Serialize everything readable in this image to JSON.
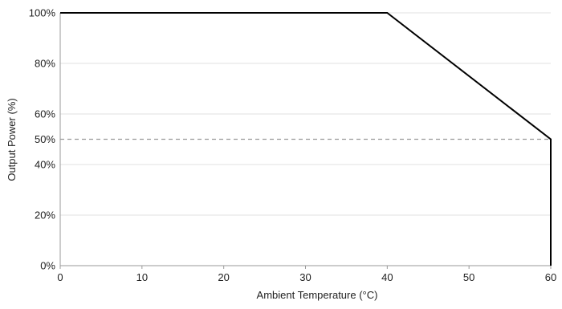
{
  "chart_data": {
    "type": "line",
    "title": "",
    "xlabel": "Ambient Temperature (°C)",
    "ylabel": "Output  Power (%)",
    "xlim": [
      0,
      60
    ],
    "ylim": [
      0,
      100
    ],
    "x_ticks": [
      0,
      10,
      20,
      30,
      40,
      50,
      60
    ],
    "x_tick_labels": [
      "0",
      "10",
      "20",
      "30",
      "40",
      "50",
      "60"
    ],
    "y_ticks": [
      0,
      20,
      40,
      50,
      60,
      80,
      100
    ],
    "y_tick_labels": [
      "0%",
      "20%",
      "40%",
      "50%",
      "60%",
      "80%",
      "100%"
    ],
    "grid": "horizontal",
    "series": [
      {
        "x": [
          0,
          40,
          60,
          60
        ],
        "y": [
          100,
          100,
          50,
          0
        ],
        "color": "#000000"
      }
    ],
    "reference_line": {
      "y": 50,
      "style": "dashed",
      "color": "#999999"
    }
  }
}
